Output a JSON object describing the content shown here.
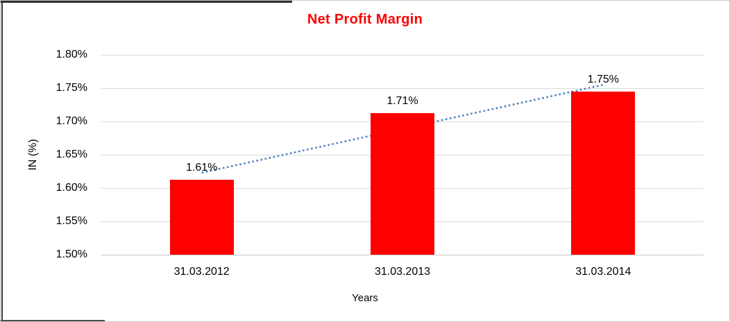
{
  "chart_data": {
    "type": "bar",
    "title": "Net Profit Margin",
    "title_color": "#ff0000",
    "xlabel": "Years",
    "ylabel": "IN (%)",
    "categories": [
      "31.03.2012",
      "31.03.2013",
      "31.03.2014"
    ],
    "values": [
      1.61,
      1.71,
      1.75
    ],
    "data_labels": [
      "1.61%",
      "1.71%",
      "1.75%"
    ],
    "bar_plot_values": [
      1.612,
      1.712,
      1.745
    ],
    "ylim": [
      1.5,
      1.8
    ],
    "ytick_step": 0.05,
    "ytick_labels": [
      "1.80%",
      "1.75%",
      "1.70%",
      "1.65%",
      "1.60%",
      "1.55%",
      "1.50%"
    ],
    "grid": "horizontal",
    "legend": "none",
    "bar_color": "#ff0000",
    "gridline_color": "#d9d9d9",
    "trendline": {
      "type": "linear",
      "style": "dotted",
      "color": "#4f81bd",
      "start_value": 1.623,
      "end_value": 1.755
    }
  }
}
